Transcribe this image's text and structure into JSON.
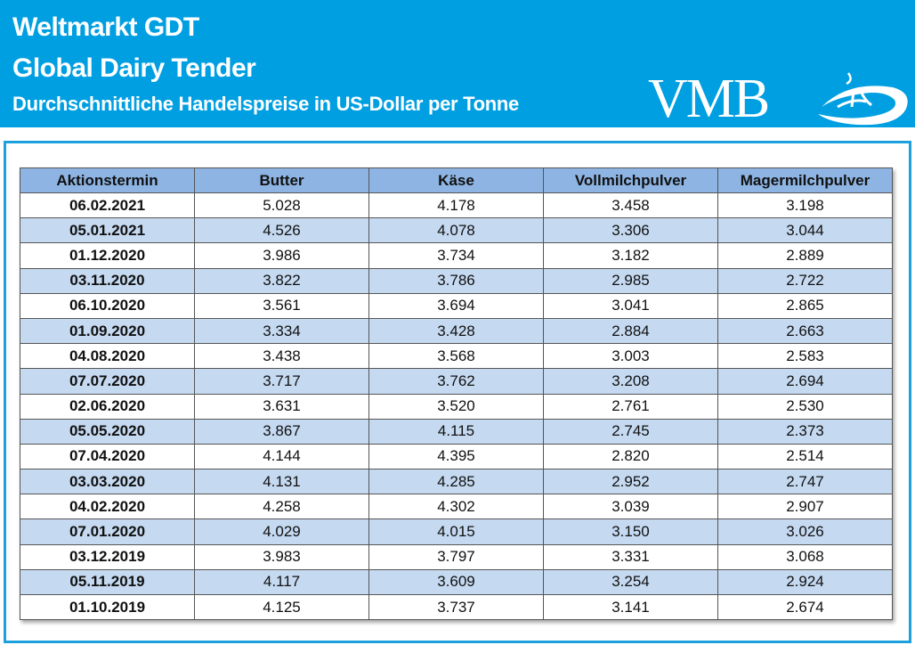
{
  "header": {
    "title": "Weltmarkt GDT",
    "subtitle": "Global Dairy Tender",
    "description": "Durchschnittliche Handelspreise in US-Dollar per Tonne",
    "logo_text": "VMB",
    "background_color": "#009fe1"
  },
  "table": {
    "columns": [
      "Aktionstermin",
      "Butter",
      "Käse",
      "Vollmilchpulver",
      "Magermilchpulver"
    ],
    "rows": [
      [
        "06.02.2021",
        "5.028",
        "4.178",
        "3.458",
        "3.198"
      ],
      [
        "05.01.2021",
        "4.526",
        "4.078",
        "3.306",
        "3.044"
      ],
      [
        "01.12.2020",
        "3.986",
        "3.734",
        "3.182",
        "2.889"
      ],
      [
        "03.11.2020",
        "3.822",
        "3.786",
        "2.985",
        "2.722"
      ],
      [
        "06.10.2020",
        "3.561",
        "3.694",
        "3.041",
        "2.865"
      ],
      [
        "01.09.2020",
        "3.334",
        "3.428",
        "2.884",
        "2.663"
      ],
      [
        "04.08.2020",
        "3.438",
        "3.568",
        "3.003",
        "2.583"
      ],
      [
        "07.07.2020",
        "3.717",
        "3.762",
        "3.208",
        "2.694"
      ],
      [
        "02.06.2020",
        "3.631",
        "3.520",
        "2.761",
        "2.530"
      ],
      [
        "05.05.2020",
        "3.867",
        "4.115",
        "2.745",
        "2.373"
      ],
      [
        "07.04.2020",
        "4.144",
        "4.395",
        "2.820",
        "2.514"
      ],
      [
        "03.03.2020",
        "4.131",
        "4.285",
        "2.952",
        "2.747"
      ],
      [
        "04.02.2020",
        "4.258",
        "4.302",
        "3.039",
        "2.907"
      ],
      [
        "07.01.2020",
        "4.029",
        "4.015",
        "3.150",
        "3.026"
      ],
      [
        "03.12.2019",
        "3.983",
        "3.797",
        "3.331",
        "3.068"
      ],
      [
        "05.11.2019",
        "4.117",
        "3.609",
        "3.254",
        "2.924"
      ],
      [
        "01.10.2019",
        "4.125",
        "3.737",
        "3.141",
        "2.674"
      ]
    ],
    "header_color": "#8db4e2",
    "alt_row_color": "#c5d9f1"
  }
}
